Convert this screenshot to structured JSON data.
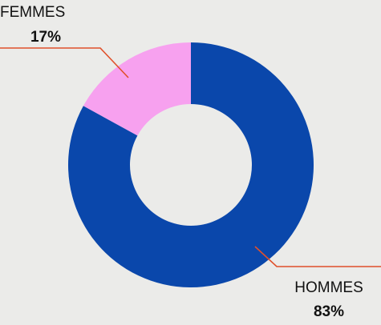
{
  "chart_data": {
    "type": "donut",
    "categories": [
      "HOMMES",
      "FEMMES"
    ],
    "values": [
      83,
      17
    ],
    "value_labels": [
      "83%",
      "17%"
    ],
    "colors": [
      "#0a47ab",
      "#f7a1ef"
    ]
  }
}
